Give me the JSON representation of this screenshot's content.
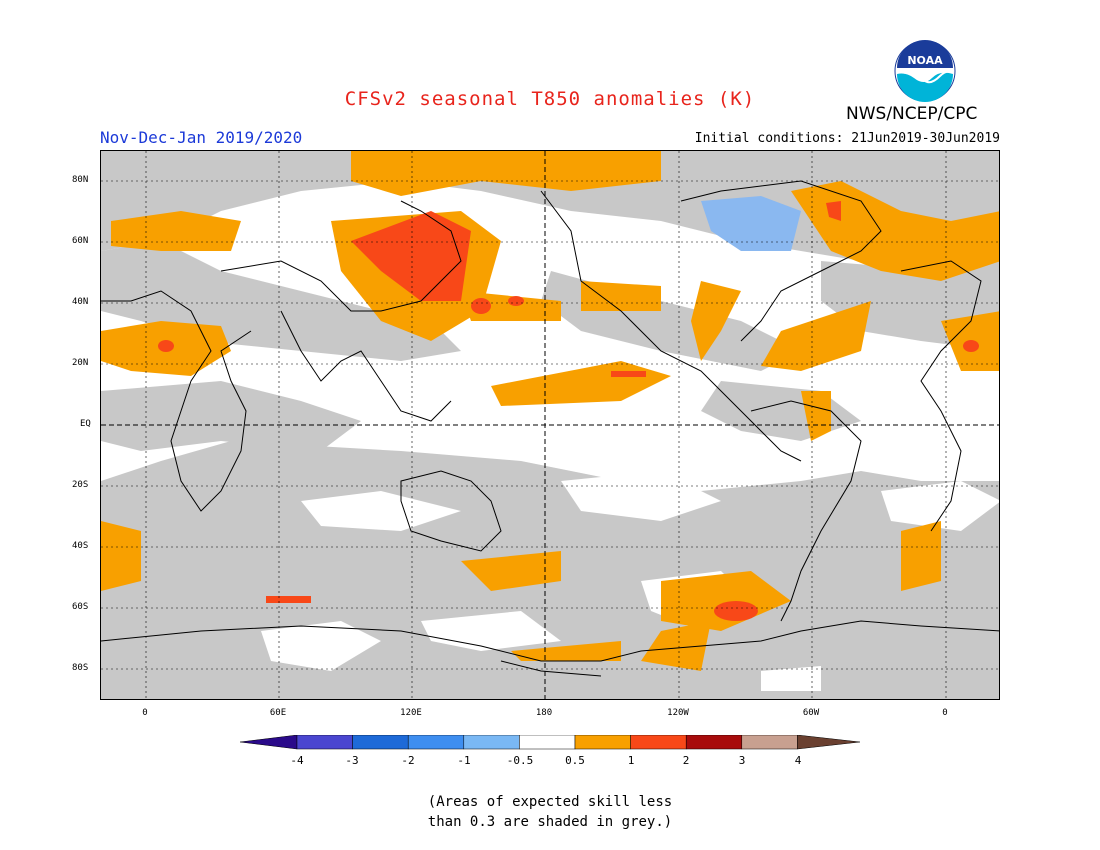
{
  "title": "CFSv2 seasonal T850 anomalies (K)",
  "agency": "NWS/NCEP/CPC",
  "logo_text": "NOAA",
  "season": "Nov-Dec-Jan 2019/2020",
  "initial_conditions": "Initial conditions: 21Jun2019-30Jun2019",
  "lat_labels": [
    "80N",
    "60N",
    "40N",
    "20N",
    "EQ",
    "20S",
    "40S",
    "60S",
    "80S"
  ],
  "lon_labels": [
    "0",
    "60E",
    "120E",
    "180",
    "120W",
    "60W",
    "0"
  ],
  "colorbar": {
    "labels": [
      "-4",
      "-3",
      "-2",
      "-1",
      "-0.5",
      "0.5",
      "1",
      "2",
      "3",
      "4"
    ],
    "colors": [
      "#2a0a8a",
      "#4a46d0",
      "#1e6ad8",
      "#3e8ef0",
      "#7ab8f4",
      "#ffffff",
      "#f8a000",
      "#f84818",
      "#a80c0c",
      "#c8a090",
      "#6a4030"
    ]
  },
  "colors": {
    "grey_low_skill": "#c8c8c8",
    "orange_0_5_to_1": "#f8a000",
    "red_1_to_2": "#f84818",
    "lightblue_neg": "#8ab8f0"
  },
  "note_line1": "(Areas of expected skill less",
  "note_line2": "than 0.3 are shaded in grey.)"
}
